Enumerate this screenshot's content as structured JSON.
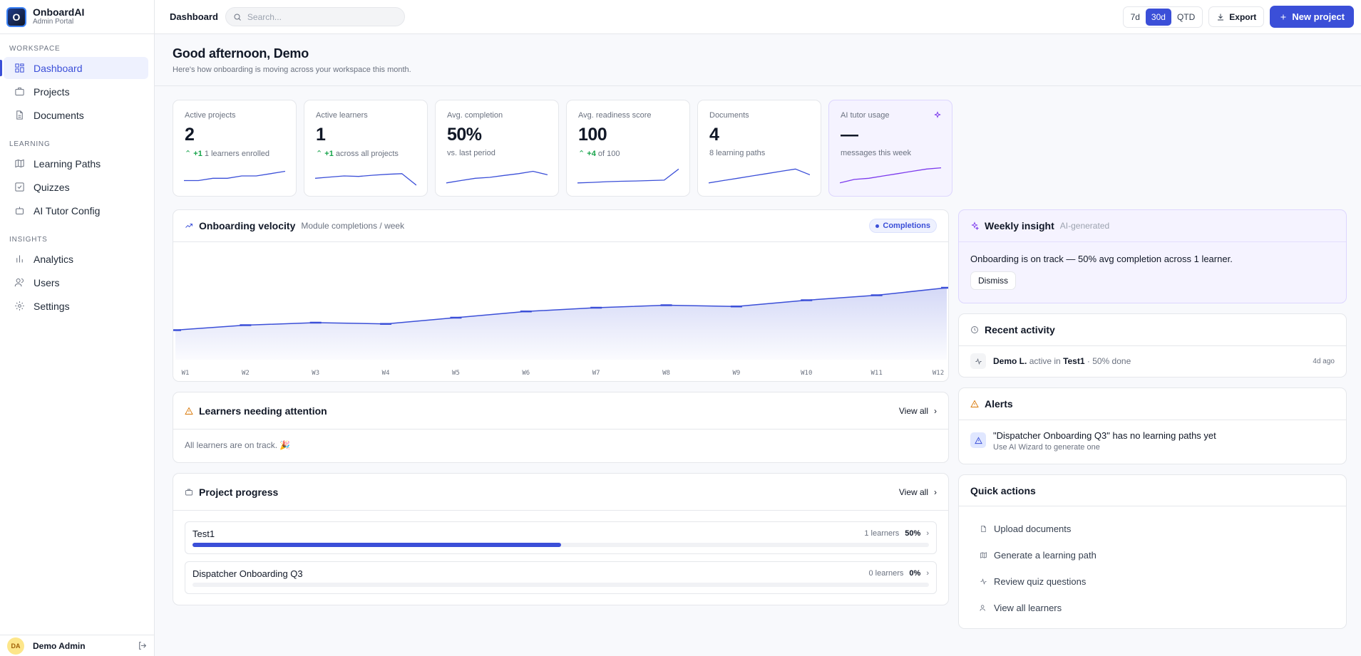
{
  "app": {
    "name": "OnboardAI",
    "subtitle": "Admin Portal",
    "logo_letter": "O"
  },
  "sidebar": {
    "sections": [
      {
        "label": "WORKSPACE",
        "items": [
          {
            "label": "Dashboard",
            "icon": "grid-icon",
            "active": true
          },
          {
            "label": "Projects",
            "icon": "briefcase-icon"
          },
          {
            "label": "Documents",
            "icon": "document-icon"
          }
        ]
      },
      {
        "label": "LEARNING",
        "items": [
          {
            "label": "Learning Paths",
            "icon": "map-icon"
          },
          {
            "label": "Quizzes",
            "icon": "checkbox-icon"
          },
          {
            "label": "AI Tutor Config",
            "icon": "bot-icon"
          }
        ]
      },
      {
        "label": "INSIGHTS",
        "items": [
          {
            "label": "Analytics",
            "icon": "bar-chart-icon"
          },
          {
            "label": "Users",
            "icon": "users-icon"
          },
          {
            "label": "Settings",
            "icon": "gear-icon"
          }
        ]
      }
    ],
    "user": {
      "initials": "DA",
      "name": "Demo Admin"
    }
  },
  "topbar": {
    "breadcrumb": "Dashboard",
    "search_placeholder": "Search...",
    "ranges": [
      "7d",
      "30d",
      "QTD"
    ],
    "active_range": "30d",
    "export_label": "Export",
    "new_project_label": "New project"
  },
  "hero": {
    "title": "Good afternoon, Demo",
    "subtitle": "Here's how onboarding is moving across your workspace this month."
  },
  "kpis": [
    {
      "label": "Active projects",
      "value": "2",
      "delta": "+1",
      "sub": "1 learners enrolled",
      "spark": [
        2,
        2,
        3,
        3,
        4,
        4,
        5,
        6
      ]
    },
    {
      "label": "Active learners",
      "value": "1",
      "delta": "+1",
      "sub": "across all projects",
      "spark": [
        3,
        3.5,
        4,
        3.8,
        4.3,
        4.7,
        5,
        0
      ]
    },
    {
      "label": "Avg. completion",
      "value": "50%",
      "delta": "",
      "sub": "vs. last period",
      "spark": [
        1,
        2,
        3,
        3.4,
        4.2,
        5,
        6,
        4.5
      ]
    },
    {
      "label": "Avg. readiness score",
      "value": "100",
      "delta": "+4",
      "sub": "of 100",
      "spark": [
        1,
        1.2,
        1.5,
        1.7,
        1.8,
        2,
        2.2,
        7
      ]
    },
    {
      "label": "Documents",
      "value": "4",
      "delta": "",
      "sub": "8 learning paths",
      "spark": [
        1,
        2,
        3,
        4,
        5,
        6,
        7,
        4.5
      ]
    },
    {
      "label": "AI tutor usage",
      "value": "—",
      "delta": "",
      "sub": "messages this week",
      "spark": [
        1,
        2.5,
        3,
        4,
        5,
        6,
        7,
        7.5
      ]
    }
  ],
  "velocity": {
    "title": "Onboarding velocity",
    "subtitle": "Module completions / week",
    "legend": "Completions"
  },
  "chart_data": {
    "type": "area",
    "categories": [
      "W1",
      "W2",
      "W3",
      "W4",
      "W5",
      "W6",
      "W7",
      "W8",
      "W9",
      "W10",
      "W11",
      "W12"
    ],
    "series": [
      {
        "name": "Completions",
        "values": [
          18,
          22,
          24,
          23,
          28,
          33,
          36,
          38,
          37,
          42,
          46,
          52
        ]
      }
    ],
    "ylim": [
      0,
      100
    ],
    "grid": false
  },
  "attention": {
    "title": "Learners needing attention",
    "view_all": "View all",
    "empty": "All learners are on track. 🎉"
  },
  "projects": {
    "title": "Project progress",
    "view_all": "View all",
    "items": [
      {
        "name": "Test1",
        "learners": "1 learners",
        "pct": "50%",
        "progress": 0.5
      },
      {
        "name": "Dispatcher Onboarding Q3",
        "learners": "0 learners",
        "pct": "0%",
        "progress": 0
      }
    ]
  },
  "insight": {
    "title": "Weekly insight",
    "tag": "AI-generated",
    "text": "Onboarding is on track — 50% avg completion across 1 learner.",
    "dismiss": "Dismiss"
  },
  "activity": {
    "title": "Recent activity",
    "name": "Demo L.",
    "verb": "active in",
    "project": "Test1",
    "detail": "· 50% done",
    "time": "4d ago"
  },
  "alerts": {
    "title": "Alerts",
    "text": "\"Dispatcher Onboarding Q3\" has no learning paths yet",
    "sub": "Use AI Wizard to generate one"
  },
  "quick": {
    "title": "Quick actions",
    "items": [
      "Upload documents",
      "Generate a learning path",
      "Review quiz questions",
      "View all learners"
    ]
  },
  "colors": {
    "accent": "#3b4fd8",
    "success": "#16a34a",
    "warning": "#d97706",
    "ai": "#7c3aed"
  }
}
